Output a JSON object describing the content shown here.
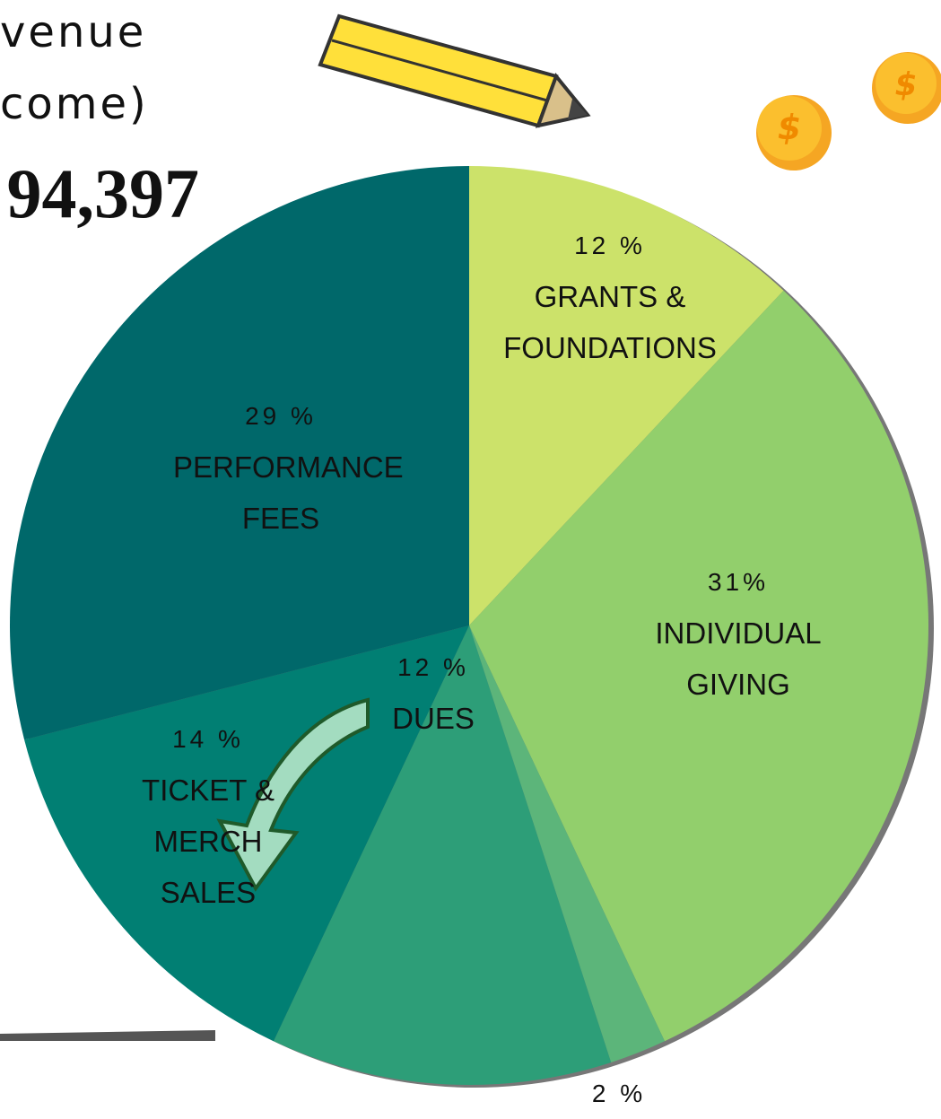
{
  "chart_data": {
    "type": "pie",
    "title_lines": [
      "venue",
      "come)"
    ],
    "total": "94,397",
    "categories": [
      "GRANTS & FOUNDATIONS",
      "INDIVIDUAL GIVING",
      null,
      "DUES",
      "TICKET & MERCH SALES",
      "PERFORMANCE FEES"
    ],
    "values": [
      12,
      31,
      2,
      12,
      14,
      29
    ],
    "value_labels": [
      "12 %",
      "31%",
      "2 %",
      "12 %",
      "14 %",
      "29 %"
    ],
    "colors": [
      "#cce26a",
      "#92cf6c",
      "#5cb57a",
      "#2d9e78",
      "#017f73",
      "#00686a"
    ]
  }
}
